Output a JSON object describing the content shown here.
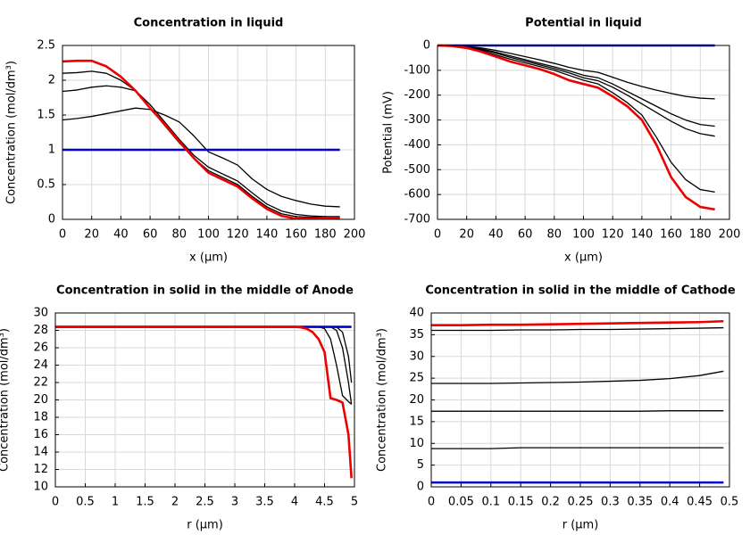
{
  "chart_data": [
    {
      "type": "line",
      "title": "Concentration in liquid",
      "x_label": "x (µm)",
      "y_label": "Concentration (mol/dm³)",
      "x": [
        0,
        10,
        20,
        30,
        40,
        50,
        60,
        70,
        80,
        90,
        100,
        110,
        120,
        130,
        140,
        150,
        160,
        170,
        180,
        190
      ],
      "xlim": [
        0,
        200
      ],
      "ylim": [
        0,
        2.5
      ],
      "xticks": [
        0,
        20,
        40,
        60,
        80,
        100,
        120,
        140,
        160,
        180,
        200
      ],
      "yticks": [
        0,
        0.5,
        1,
        1.5,
        2,
        2.5
      ],
      "grid": true,
      "series": [
        {
          "color": "#000000",
          "values": [
            1.43,
            1.45,
            1.48,
            1.52,
            1.56,
            1.6,
            1.58,
            1.5,
            1.4,
            1.2,
            0.97,
            0.88,
            0.78,
            0.58,
            0.43,
            0.33,
            0.27,
            0.22,
            0.19,
            0.18
          ]
        },
        {
          "color": "#000000",
          "values": [
            1.84,
            1.86,
            1.9,
            1.92,
            1.9,
            1.85,
            1.65,
            1.4,
            1.15,
            0.92,
            0.75,
            0.65,
            0.55,
            0.38,
            0.22,
            0.12,
            0.07,
            0.05,
            0.04,
            0.04
          ]
        },
        {
          "color": "#000000",
          "values": [
            2.1,
            2.11,
            2.13,
            2.1,
            2.0,
            1.85,
            1.6,
            1.35,
            1.1,
            0.88,
            0.7,
            0.6,
            0.5,
            0.33,
            0.18,
            0.08,
            0.04,
            0.03,
            0.03,
            0.03
          ]
        },
        {
          "color": "#0000cc",
          "values": [
            1,
            1,
            1,
            1,
            1,
            1,
            1,
            1,
            1,
            1,
            1,
            1,
            1,
            1,
            1,
            1,
            1,
            1,
            1,
            1
          ]
        },
        {
          "color": "#ee0000",
          "values": [
            2.27,
            2.28,
            2.28,
            2.2,
            2.05,
            1.85,
            1.6,
            1.37,
            1.12,
            0.88,
            0.67,
            0.57,
            0.47,
            0.3,
            0.15,
            0.05,
            0.01,
            0.01,
            0.02,
            0.02
          ]
        }
      ]
    },
    {
      "type": "line",
      "title": "Potential in liquid",
      "x_label": "x (µm)",
      "y_label": "Potential (mV)",
      "x": [
        0,
        10,
        20,
        30,
        40,
        50,
        60,
        70,
        80,
        90,
        100,
        110,
        120,
        130,
        140,
        150,
        160,
        170,
        180,
        190
      ],
      "xlim": [
        0,
        200
      ],
      "ylim": [
        -700,
        0
      ],
      "xticks": [
        0,
        20,
        40,
        60,
        80,
        100,
        120,
        140,
        160,
        180,
        200
      ],
      "yticks": [
        -700,
        -600,
        -500,
        -400,
        -300,
        -200,
        -100,
        0
      ],
      "grid": true,
      "series": [
        {
          "color": "#000000",
          "values": [
            0,
            -1,
            -4,
            -10,
            -20,
            -32,
            -45,
            -58,
            -72,
            -88,
            -100,
            -108,
            -128,
            -148,
            -165,
            -180,
            -193,
            -205,
            -212,
            -215
          ]
        },
        {
          "color": "#000000",
          "values": [
            0,
            -1,
            -5,
            -14,
            -27,
            -42,
            -57,
            -72,
            -86,
            -102,
            -120,
            -130,
            -155,
            -185,
            -215,
            -245,
            -275,
            -300,
            -318,
            -325
          ]
        },
        {
          "color": "#000000",
          "values": [
            0,
            -1,
            -6,
            -16,
            -31,
            -48,
            -63,
            -78,
            -93,
            -110,
            -130,
            -142,
            -168,
            -200,
            -235,
            -270,
            -305,
            -335,
            -355,
            -365
          ]
        },
        {
          "color": "#000000",
          "values": [
            0,
            -2,
            -8,
            -20,
            -38,
            -55,
            -70,
            -85,
            -100,
            -120,
            -140,
            -155,
            -190,
            -230,
            -280,
            -370,
            -470,
            -540,
            -580,
            -590
          ]
        },
        {
          "color": "#0000cc",
          "values": [
            0,
            0,
            0,
            0,
            0,
            0,
            0,
            0,
            0,
            0,
            0,
            0,
            0,
            0,
            0,
            0,
            0,
            0,
            0,
            0
          ]
        },
        {
          "color": "#ee0000",
          "values": [
            0,
            -2,
            -10,
            -25,
            -45,
            -65,
            -80,
            -95,
            -115,
            -140,
            -155,
            -170,
            -205,
            -245,
            -300,
            -400,
            -530,
            -610,
            -650,
            -660
          ]
        }
      ]
    },
    {
      "type": "line",
      "title": "Concentration in solid in the middle of Anode",
      "x_label": "r (µm)",
      "y_label": "Concentration (mol/dm³)",
      "x": [
        0,
        0.5,
        1,
        1.5,
        2,
        2.5,
        3,
        3.5,
        4,
        4.1,
        4.2,
        4.3,
        4.4,
        4.5,
        4.6,
        4.7,
        4.8,
        4.9,
        4.95
      ],
      "xlim": [
        0,
        5
      ],
      "ylim": [
        10,
        30
      ],
      "xticks": [
        0,
        0.5,
        1,
        1.5,
        2,
        2.5,
        3,
        3.5,
        4,
        4.5,
        5
      ],
      "yticks": [
        10,
        12,
        14,
        16,
        18,
        20,
        22,
        24,
        26,
        28,
        30
      ],
      "grid": true,
      "series": [
        {
          "color": "#000000",
          "values": [
            28.4,
            28.4,
            28.4,
            28.4,
            28.4,
            28.4,
            28.4,
            28.4,
            28.4,
            28.4,
            28.4,
            28.4,
            28.4,
            28.4,
            28.4,
            28.4,
            27.8,
            25,
            22
          ]
        },
        {
          "color": "#000000",
          "values": [
            28.4,
            28.4,
            28.4,
            28.4,
            28.4,
            28.4,
            28.4,
            28.4,
            28.4,
            28.4,
            28.4,
            28.4,
            28.4,
            28.4,
            28.4,
            28,
            26,
            22,
            19.5
          ]
        },
        {
          "color": "#000000",
          "values": [
            28.4,
            28.4,
            28.4,
            28.4,
            28.4,
            28.4,
            28.4,
            28.4,
            28.4,
            28.4,
            28.4,
            28.4,
            28.4,
            28.2,
            27,
            24,
            20.5,
            19.8,
            19.5
          ]
        },
        {
          "color": "#0000cc",
          "values": [
            28.4,
            28.4,
            28.4,
            28.4,
            28.4,
            28.4,
            28.4,
            28.4,
            28.4,
            28.4,
            28.4,
            28.4,
            28.4,
            28.4,
            28.4,
            28.4,
            28.4,
            28.4,
            28.4
          ]
        },
        {
          "color": "#ee0000",
          "values": [
            28.4,
            28.4,
            28.4,
            28.4,
            28.4,
            28.4,
            28.4,
            28.4,
            28.4,
            28.35,
            28.2,
            27.8,
            27,
            25.5,
            20.2,
            20,
            19.7,
            16,
            11
          ]
        }
      ]
    },
    {
      "type": "line",
      "title": "Concentration in solid in the middle of Cathode",
      "x_label": "r (µm)",
      "y_label": "Concentration (mol/dm³)",
      "x": [
        0,
        0.05,
        0.1,
        0.15,
        0.2,
        0.25,
        0.3,
        0.35,
        0.4,
        0.45,
        0.49
      ],
      "xlim": [
        0,
        0.5
      ],
      "ylim": [
        0,
        40
      ],
      "xticks": [
        0,
        0.05,
        0.1,
        0.15,
        0.2,
        0.25,
        0.3,
        0.35,
        0.4,
        0.45,
        0.5
      ],
      "yticks": [
        0,
        5,
        10,
        15,
        20,
        25,
        30,
        35,
        40
      ],
      "grid": true,
      "series": [
        {
          "color": "#000000",
          "values": [
            8.8,
            8.8,
            8.8,
            9,
            9,
            9,
            9,
            9,
            9,
            9,
            9
          ]
        },
        {
          "color": "#000000",
          "values": [
            17.4,
            17.4,
            17.4,
            17.4,
            17.4,
            17.4,
            17.4,
            17.4,
            17.5,
            17.5,
            17.5
          ]
        },
        {
          "color": "#000000",
          "values": [
            23.8,
            23.8,
            23.8,
            23.9,
            24,
            24.1,
            24.3,
            24.5,
            24.9,
            25.6,
            26.6
          ]
        },
        {
          "color": "#000000",
          "values": [
            36,
            36,
            36,
            36.1,
            36.1,
            36.2,
            36.2,
            36.3,
            36.4,
            36.5,
            36.6
          ]
        },
        {
          "color": "#0000cc",
          "values": [
            1,
            1,
            1,
            1,
            1,
            1,
            1,
            1,
            1,
            1,
            1
          ]
        },
        {
          "color": "#ee0000",
          "values": [
            37.2,
            37.2,
            37.3,
            37.3,
            37.4,
            37.5,
            37.6,
            37.7,
            37.8,
            37.9,
            38.1
          ]
        }
      ]
    }
  ]
}
